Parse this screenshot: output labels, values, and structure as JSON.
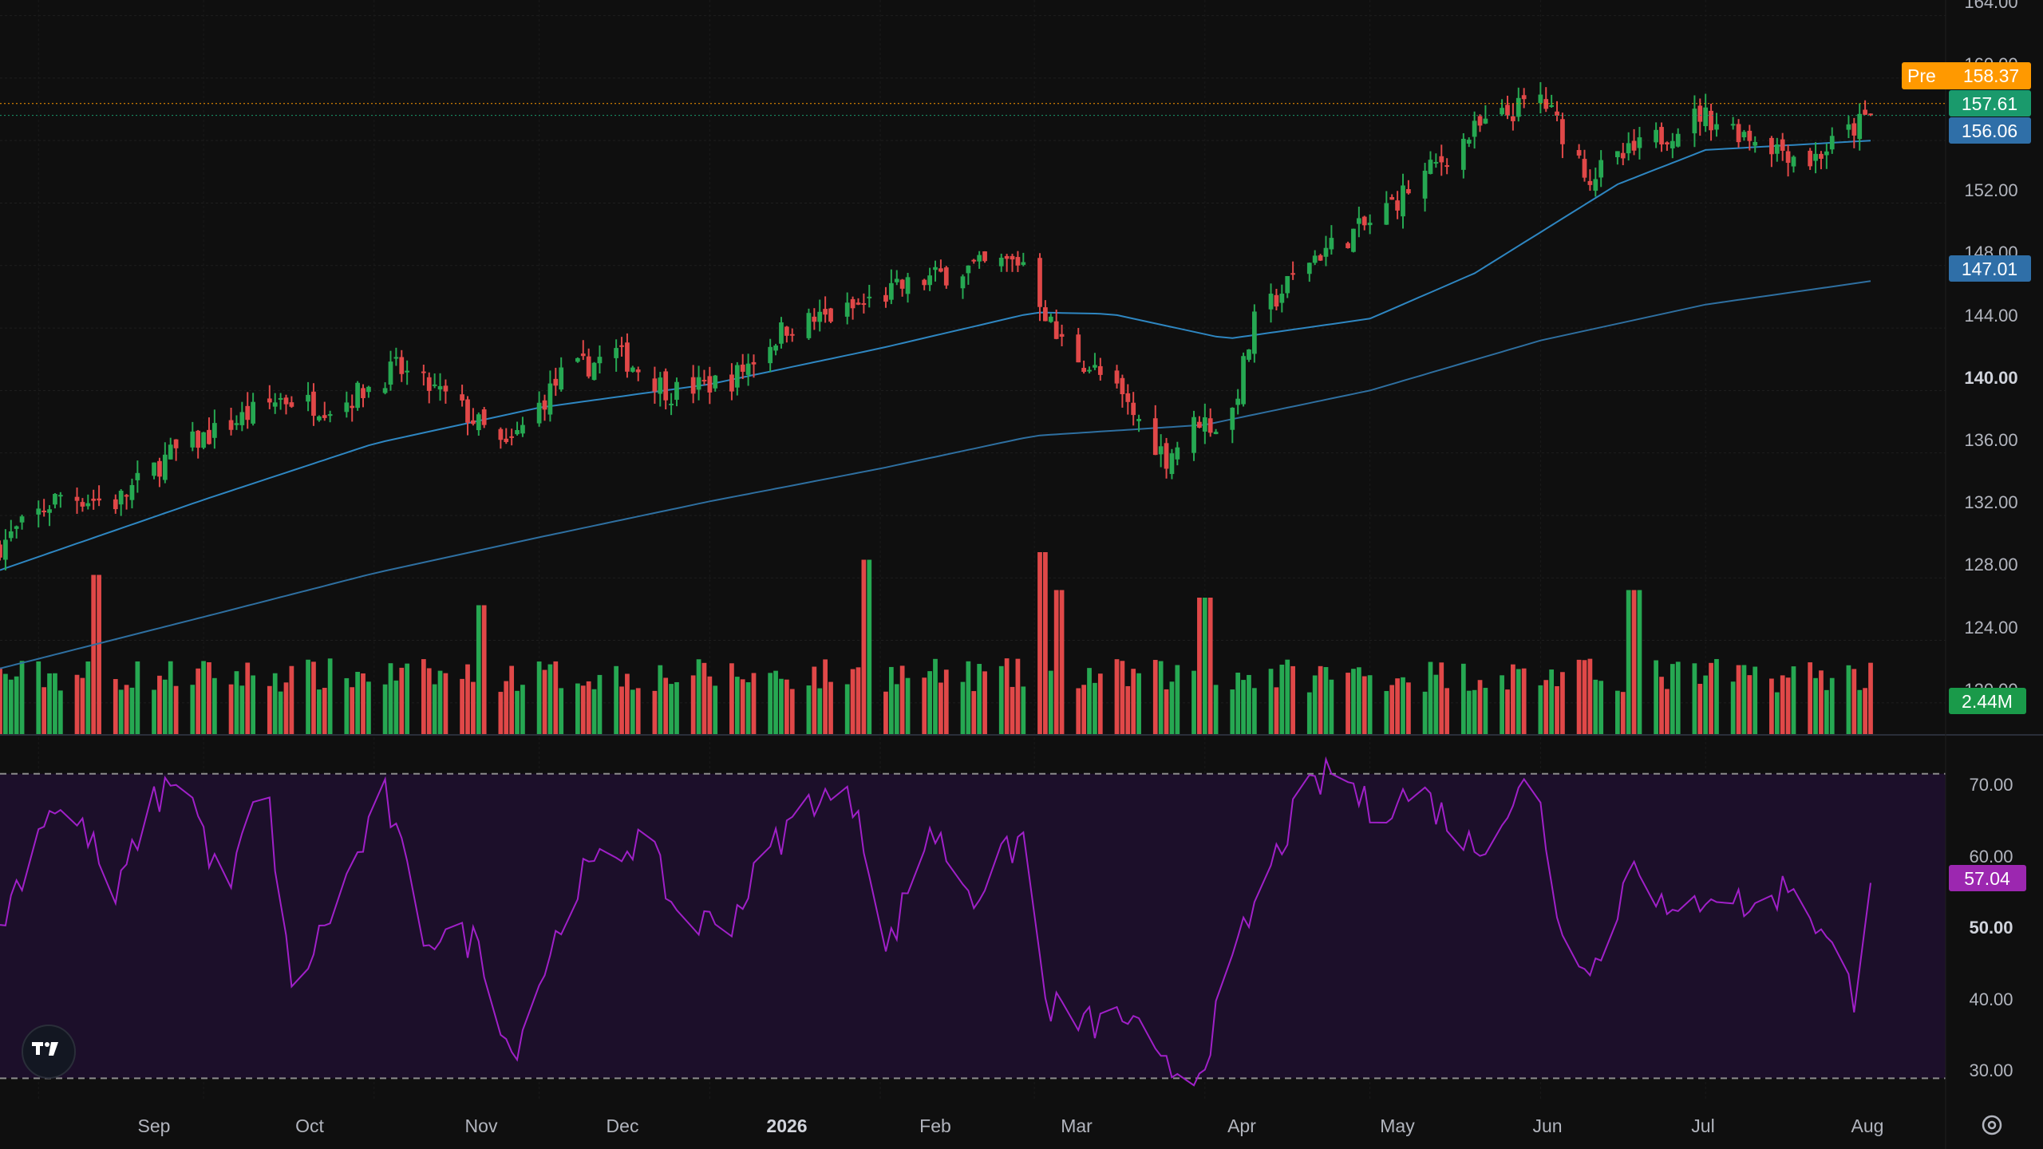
{
  "colors": {
    "background": "#0f0f0f",
    "up": "#26a852",
    "down": "#e04848",
    "ma50": "#2e86c1",
    "ma200": "#2e6fa0",
    "rsi": "#a020c8",
    "rsi_band": "#1c0f2a",
    "pre": "#ff9900",
    "last": "#1a9a6c",
    "ma50_badge": "#2f6fa8",
    "ma200_badge": "#2f6fa8",
    "volume_badge": "#1a9a4a",
    "rsi_badge": "#9c27b0"
  },
  "price_axis": {
    "ticks": [
      "164.00",
      "160.00",
      "152.00",
      "148.00",
      "144.00",
      "140.00",
      "136.00",
      "132.00",
      "128.00",
      "124.00",
      "120.00"
    ],
    "bold_tick": "140.00"
  },
  "rsi_axis": {
    "ticks": [
      "70.00",
      "60.00",
      "50.00",
      "40.00",
      "30.00"
    ],
    "bold_tick": "50.00"
  },
  "time_axis": {
    "labels": [
      "Sep",
      "Oct",
      "Nov",
      "Dec",
      "2026",
      "Feb",
      "Mar",
      "Apr",
      "May",
      "Jun",
      "Jul",
      "Aug"
    ],
    "bold_label": "2026"
  },
  "badges": {
    "pre_label": "Pre",
    "pre_value": "158.37",
    "last_value": "157.61",
    "ma50_value": "156.06",
    "ma200_value": "147.01",
    "volume_value": "2.44M",
    "rsi_value": "57.04"
  },
  "icons": {
    "logo": "tradingview-logo-icon",
    "settings": "settings-gear-icon"
  },
  "chart_data": {
    "type": "candlestick",
    "x_range": [
      "2025-08-25",
      "2026-07-31"
    ],
    "price_ylim": [
      118,
      165
    ],
    "rsi_ylim": [
      27,
      75
    ],
    "rsi_levels": [
      70,
      30
    ],
    "candles_close_anchors": [
      [
        "2025-08-25",
        130.1
      ],
      [
        "2025-09-05",
        133.3
      ],
      [
        "2025-09-15",
        132.8
      ],
      [
        "2025-09-25",
        135.9
      ],
      [
        "2025-10-05",
        137.7
      ],
      [
        "2025-10-15",
        139.5
      ],
      [
        "2025-10-25",
        138.9
      ],
      [
        "2025-11-05",
        141.4
      ],
      [
        "2025-11-15",
        139.4
      ],
      [
        "2025-11-25",
        136.2
      ],
      [
        "2025-12-05",
        140.9
      ],
      [
        "2025-12-15",
        142.4
      ],
      [
        "2025-12-25",
        139.9
      ],
      [
        "2026-01-05",
        140.7
      ],
      [
        "2026-01-15",
        144.1
      ],
      [
        "2026-01-25",
        144.9
      ],
      [
        "2026-02-05",
        146.6
      ],
      [
        "2026-02-15",
        147.7
      ],
      [
        "2026-02-27",
        148.3
      ],
      [
        "2026-03-05",
        143.4
      ],
      [
        "2026-03-15",
        140.3
      ],
      [
        "2026-03-25",
        135.7
      ],
      [
        "2026-03-31",
        138.2
      ],
      [
        "2026-04-05",
        137.3
      ],
      [
        "2026-04-10",
        144.3
      ],
      [
        "2026-04-20",
        148.4
      ],
      [
        "2026-05-01",
        150.7
      ],
      [
        "2026-05-10",
        153.5
      ],
      [
        "2026-05-20",
        156.6
      ],
      [
        "2026-06-01",
        158.8
      ],
      [
        "2026-06-10",
        153.7
      ],
      [
        "2026-06-20",
        155.7
      ],
      [
        "2026-06-30",
        157.7
      ],
      [
        "2026-07-10",
        156.2
      ],
      [
        "2026-07-20",
        154.7
      ],
      [
        "2026-07-31",
        157.6
      ]
    ],
    "ma50_anchors": [
      [
        "2025-08-25",
        128.5
      ],
      [
        "2025-10-01",
        133.0
      ],
      [
        "2025-11-01",
        136.6
      ],
      [
        "2025-12-01",
        138.9
      ],
      [
        "2026-01-01",
        140.4
      ],
      [
        "2026-02-01",
        142.7
      ],
      [
        "2026-03-01",
        145.0
      ],
      [
        "2026-03-15",
        144.9
      ],
      [
        "2026-04-05",
        143.3
      ],
      [
        "2026-05-01",
        144.6
      ],
      [
        "2026-05-20",
        147.5
      ],
      [
        "2026-06-15",
        153.2
      ],
      [
        "2026-07-01",
        155.4
      ],
      [
        "2026-07-31",
        156.0
      ]
    ],
    "ma200_anchors": [
      [
        "2025-08-25",
        122.2
      ],
      [
        "2025-10-01",
        125.5
      ],
      [
        "2025-11-01",
        128.3
      ],
      [
        "2025-12-01",
        130.6
      ],
      [
        "2026-01-01",
        132.9
      ],
      [
        "2026-02-01",
        135.0
      ],
      [
        "2026-03-01",
        137.1
      ],
      [
        "2026-04-01",
        137.8
      ],
      [
        "2026-05-01",
        140.0
      ],
      [
        "2026-06-01",
        143.2
      ],
      [
        "2026-07-01",
        145.5
      ],
      [
        "2026-07-31",
        147.0
      ]
    ],
    "rsi_anchors": [
      [
        "2025-08-25",
        50
      ],
      [
        "2025-09-03",
        66
      ],
      [
        "2025-09-10",
        62
      ],
      [
        "2025-09-15",
        53
      ],
      [
        "2025-09-20",
        64
      ],
      [
        "2025-09-27",
        71
      ],
      [
        "2025-10-05",
        53
      ],
      [
        "2025-10-12",
        71
      ],
      [
        "2025-10-17",
        41
      ],
      [
        "2025-10-25",
        53
      ],
      [
        "2025-11-03",
        67
      ],
      [
        "2025-11-10",
        49
      ],
      [
        "2025-11-20",
        48
      ],
      [
        "2025-11-26",
        33
      ],
      [
        "2025-12-08",
        56
      ],
      [
        "2025-12-20",
        62
      ],
      [
        "2025-12-27",
        50
      ],
      [
        "2026-01-05",
        51
      ],
      [
        "2026-01-12",
        60
      ],
      [
        "2026-01-20",
        67
      ],
      [
        "2026-01-28",
        66
      ],
      [
        "2026-02-02",
        46
      ],
      [
        "2026-02-10",
        63
      ],
      [
        "2026-02-18",
        54
      ],
      [
        "2026-02-27",
        62
      ],
      [
        "2026-03-03",
        40
      ],
      [
        "2026-03-10",
        37
      ],
      [
        "2026-03-18",
        38
      ],
      [
        "2026-03-24",
        31
      ],
      [
        "2026-03-31",
        31
      ],
      [
        "2026-04-08",
        49
      ],
      [
        "2026-04-18",
        66
      ],
      [
        "2026-04-25",
        71
      ],
      [
        "2026-05-01",
        65
      ],
      [
        "2026-05-10",
        68
      ],
      [
        "2026-05-20",
        60
      ],
      [
        "2026-05-31",
        70
      ],
      [
        "2026-06-05",
        48
      ],
      [
        "2026-06-12",
        45
      ],
      [
        "2026-06-18",
        60
      ],
      [
        "2026-06-25",
        50
      ],
      [
        "2026-07-02",
        55
      ],
      [
        "2026-07-10",
        52
      ],
      [
        "2026-07-17",
        56
      ],
      [
        "2026-07-25",
        45
      ],
      [
        "2026-07-28",
        41
      ],
      [
        "2026-07-31",
        57
      ]
    ],
    "volume_spikes": [
      [
        "2025-09-12",
        2.1
      ],
      [
        "2025-11-21",
        1.7
      ],
      [
        "2026-01-30",
        2.3
      ],
      [
        "2026-03-02",
        2.4
      ],
      [
        "2026-03-06",
        1.9
      ],
      [
        "2026-04-01",
        1.8
      ],
      [
        "2026-06-18",
        1.9
      ]
    ],
    "last_volume": "2.44M",
    "last_rsi": 57.04,
    "last_close": 157.61,
    "premarket": 158.37,
    "ma50_last": 156.06,
    "ma200_last": 147.01
  }
}
